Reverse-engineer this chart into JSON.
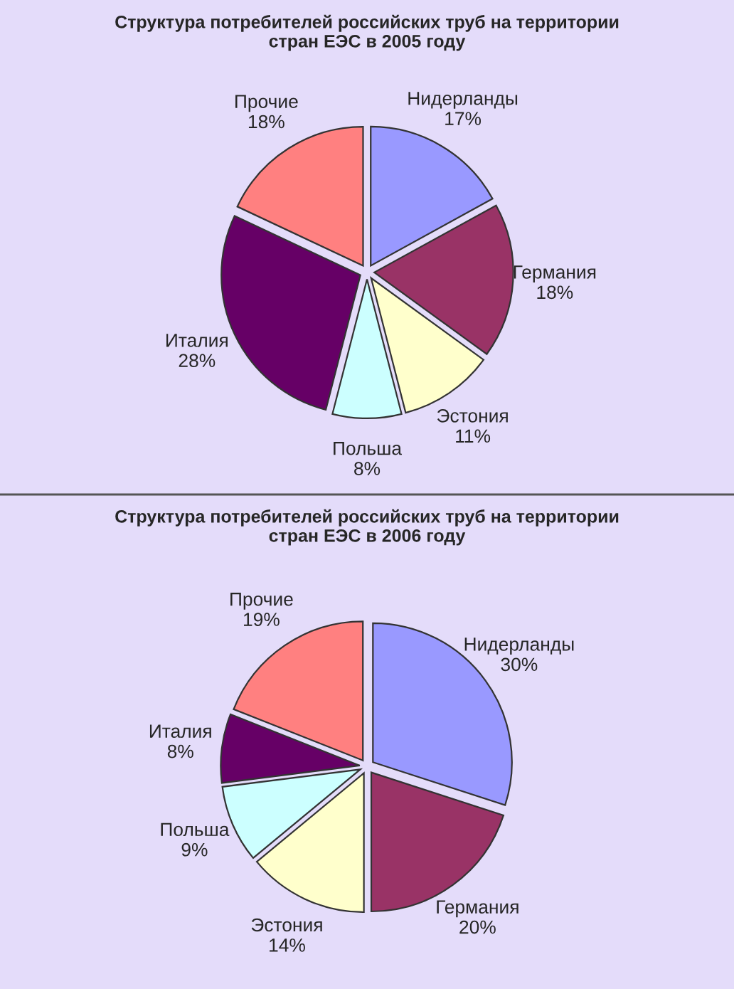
{
  "chart_data": [
    {
      "type": "pie",
      "title": "Структура потребителей российских труб на территории\nстран ЕЭС в 2005 году",
      "categories": [
        "Нидерланды",
        "Германия",
        "Эстония",
        "Польша",
        "Италия",
        "Прочие"
      ],
      "values": [
        17,
        18,
        11,
        8,
        28,
        18
      ],
      "value_labels": [
        "17%",
        "18%",
        "11%",
        "8%",
        "28%",
        "18%"
      ],
      "colors": [
        "#9999ff",
        "#993366",
        "#ffffcc",
        "#ccffff",
        "#660066",
        "#ff8080"
      ]
    },
    {
      "type": "pie",
      "title": "Структура потребителей российских труб на территории\nстран ЕЭС в 2006 году",
      "categories": [
        "Нидерланды",
        "Германия",
        "Эстония",
        "Польша",
        "Италия",
        "Прочие"
      ],
      "values": [
        30,
        20,
        14,
        9,
        8,
        19
      ],
      "value_labels": [
        "30%",
        "20%",
        "14%",
        "9%",
        "8%",
        "19%"
      ],
      "colors": [
        "#9999ff",
        "#993366",
        "#ffffcc",
        "#ccffff",
        "#660066",
        "#ff8080"
      ]
    }
  ]
}
